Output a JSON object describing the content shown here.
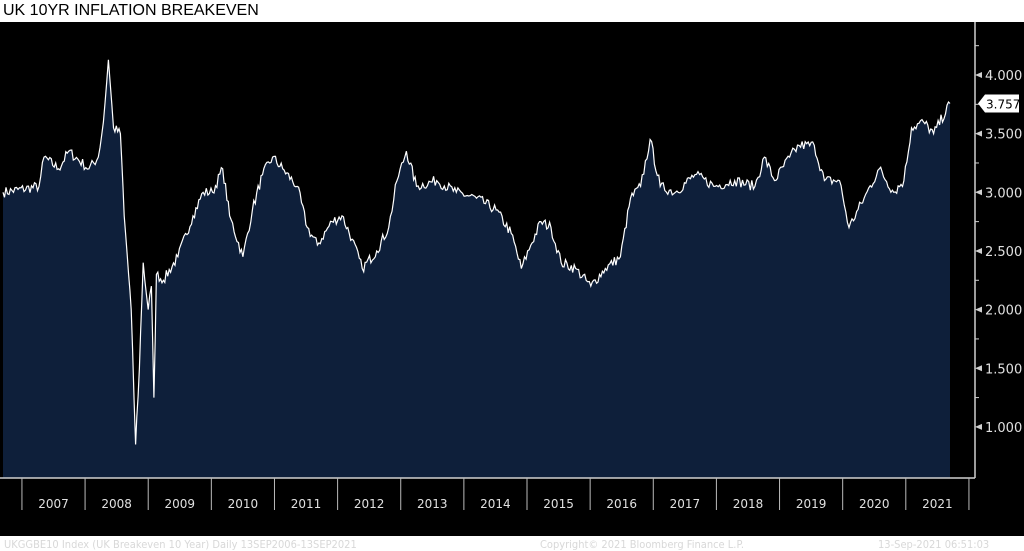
{
  "chart_data": {
    "type": "area",
    "title": "UK 10YR INFLATION BREAKEVEN",
    "xlabel": "",
    "ylabel": "",
    "xlim": [
      2006.7,
      2021.7
    ],
    "ylim": [
      0.56,
      4.35
    ],
    "yticks": [
      1.0,
      1.5,
      2.0,
      2.5,
      3.0,
      3.5,
      4.0
    ],
    "ytick_labels": [
      "1.000",
      "1.500",
      "2.000",
      "2.500",
      "3.000",
      "3.500",
      "4.000"
    ],
    "xtick_labels": [
      "2007",
      "2008",
      "2009",
      "2010",
      "2011",
      "2012",
      "2013",
      "2014",
      "2015",
      "2016",
      "2017",
      "2018",
      "2019",
      "2020",
      "2021"
    ],
    "last_value_label": "3.757",
    "last_value": 3.757,
    "series": [
      {
        "name": "UKGGBE10 Index",
        "x": [
          2006.7,
          2007.27,
          2007.35,
          2007.58,
          2007.74,
          2008.06,
          2008.21,
          2008.29,
          2008.37,
          2008.45,
          2008.56,
          2008.62,
          2008.69,
          2008.73,
          2008.8,
          2008.86,
          2008.92,
          2009.0,
          2009.05,
          2009.09,
          2009.13,
          2009.24,
          2009.47,
          2009.71,
          2009.87,
          2010.02,
          2010.18,
          2010.29,
          2010.5,
          2010.65,
          2010.81,
          2010.97,
          2011.13,
          2011.36,
          2011.52,
          2011.68,
          2011.91,
          2012.07,
          2012.23,
          2012.39,
          2012.62,
          2012.81,
          2012.94,
          2013.09,
          2013.25,
          2013.57,
          2013.88,
          2014.2,
          2014.51,
          2014.75,
          2014.91,
          2015.06,
          2015.22,
          2015.38,
          2015.54,
          2015.77,
          2016.01,
          2016.24,
          2016.48,
          2016.64,
          2016.8,
          2016.95,
          2017.11,
          2017.35,
          2017.66,
          2017.98,
          2018.29,
          2018.61,
          2018.76,
          2018.92,
          2019.16,
          2019.31,
          2019.55,
          2019.71,
          2019.95,
          2020.1,
          2020.34,
          2020.58,
          2020.81,
          2020.97,
          2021.09,
          2021.28,
          2021.44,
          2021.7
        ],
        "y": [
          3.0,
          3.05,
          3.3,
          3.2,
          3.35,
          3.2,
          3.3,
          3.6,
          4.13,
          3.55,
          3.5,
          2.8,
          2.3,
          2.0,
          0.85,
          1.5,
          2.4,
          2.0,
          2.2,
          1.25,
          2.3,
          2.25,
          2.45,
          2.8,
          3.0,
          3.0,
          3.2,
          2.8,
          2.45,
          2.85,
          3.15,
          3.3,
          3.2,
          3.05,
          2.7,
          2.55,
          2.75,
          2.8,
          2.6,
          2.35,
          2.5,
          2.7,
          3.1,
          3.35,
          3.05,
          3.1,
          3.0,
          2.95,
          2.85,
          2.65,
          2.35,
          2.55,
          2.75,
          2.7,
          2.4,
          2.35,
          2.2,
          2.35,
          2.45,
          2.95,
          3.05,
          3.45,
          3.05,
          3.0,
          3.15,
          3.05,
          3.1,
          3.05,
          3.3,
          3.1,
          3.3,
          3.4,
          3.4,
          3.1,
          3.1,
          2.7,
          2.95,
          3.2,
          3.0,
          3.1,
          3.55,
          3.6,
          3.5,
          3.757
        ]
      }
    ],
    "colors": {
      "background": "#000000",
      "area": "#0e1f3a",
      "line": "#ffffff",
      "axis": "#d0d0d0"
    },
    "grid": false
  },
  "footer": {
    "left": "UKGGBE10 Index (UK Breakeven 10 Year)  Daily 13SEP2006-13SEP2021",
    "center": "Copyright© 2021 Bloomberg Finance L.P.",
    "right": "13-Sep-2021 06:51:03"
  }
}
